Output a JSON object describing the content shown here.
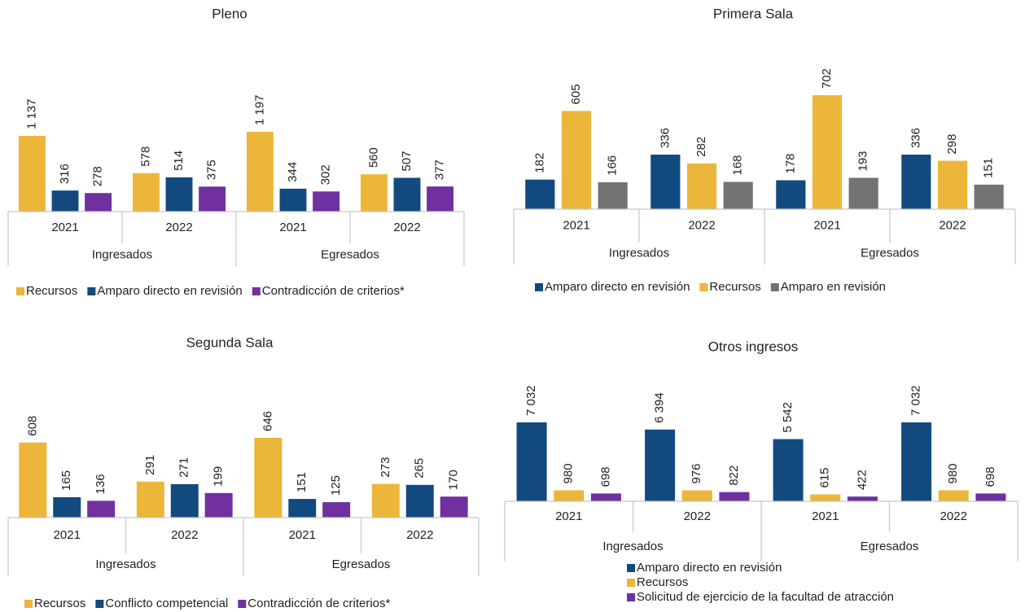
{
  "chart_data": [
    {
      "type": "bar",
      "title": "Pleno",
      "categories": [
        "2021",
        "2022",
        "2021",
        "2022"
      ],
      "groups": [
        "Ingresados",
        "Egresados"
      ],
      "series": [
        {
          "name": "Recursos",
          "color": "#ebb63a",
          "values": [
            1137,
            578,
            1197,
            560
          ],
          "value_labels": [
            "1 137",
            "578",
            "1 197",
            "560"
          ]
        },
        {
          "name": "Amparo directo en revisión",
          "color": "#124a80",
          "values": [
            316,
            514,
            344,
            507
          ]
        },
        {
          "name": "Contradicción de criterios*",
          "color": "#7030a0",
          "values": [
            278,
            375,
            302,
            377
          ]
        }
      ]
    },
    {
      "type": "bar",
      "title": "Primera Sala",
      "categories": [
        "2021",
        "2022",
        "2021",
        "2022"
      ],
      "groups": [
        "Ingresados",
        "Egresados"
      ],
      "series": [
        {
          "name": "Amparo directo en revisión",
          "color": "#124a80",
          "values": [
            182,
            336,
            178,
            336
          ]
        },
        {
          "name": "Recursos",
          "color": "#ebb63a",
          "values": [
            605,
            282,
            702,
            298
          ]
        },
        {
          "name": "Amparo en revisión",
          "color": "#737373",
          "values": [
            166,
            168,
            193,
            151
          ]
        }
      ]
    },
    {
      "type": "bar",
      "title": "Segunda Sala",
      "categories": [
        "2021",
        "2022",
        "2021",
        "2022"
      ],
      "groups": [
        "Ingresados",
        "Egresados"
      ],
      "series": [
        {
          "name": "Recursos",
          "color": "#ebb63a",
          "values": [
            608,
            291,
            646,
            273
          ]
        },
        {
          "name": "Conflicto competencial",
          "color": "#124a80",
          "values": [
            165,
            271,
            151,
            265
          ]
        },
        {
          "name": "Contradicción de criterios*",
          "color": "#7030a0",
          "values": [
            136,
            199,
            125,
            170
          ]
        }
      ]
    },
    {
      "type": "bar",
      "title": "Otros ingresos",
      "categories": [
        "2021",
        "2022",
        "2021",
        "2022"
      ],
      "groups": [
        "Ingresados",
        "Egresados"
      ],
      "series": [
        {
          "name": "Amparo directo en revisión",
          "color": "#124a80",
          "values": [
            7032,
            6394,
            5542,
            7032
          ],
          "value_labels": [
            "7 032",
            "6 394",
            "5 542",
            "7 032"
          ]
        },
        {
          "name": "Recursos",
          "color": "#ebb63a",
          "values": [
            980,
            976,
            615,
            980
          ]
        },
        {
          "name": "Solicitud de ejercicio de la facultad de atracción",
          "color": "#7030a0",
          "values": [
            698,
            822,
            422,
            698
          ]
        }
      ]
    }
  ]
}
